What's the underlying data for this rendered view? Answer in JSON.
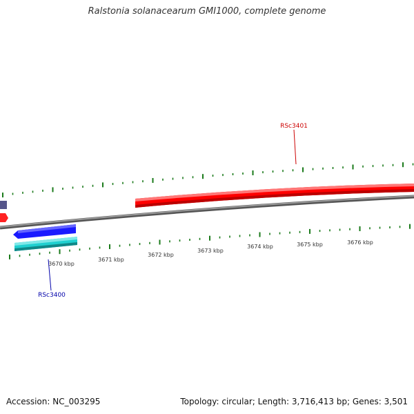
{
  "title": "Ralstonia solanacearum GMI1000, complete genome",
  "footer": {
    "accession": "Accession: NC_003295",
    "summary": "Topology: circular; Length: 3,716,413 bp; Genes: 3,501"
  },
  "scale_labels": [
    "3670 kbp",
    "3671 kbp",
    "3672 kbp",
    "3673 kbp",
    "3674 kbp",
    "3675 kbp",
    "3676 kbp"
  ],
  "genes": [
    {
      "label": "RSc3401",
      "strand": "forward",
      "color": "#ff0000"
    },
    {
      "label": "RSc3400",
      "strand": "reverse",
      "color": "#0000ee"
    }
  ],
  "colors": {
    "backbone": "#888888",
    "ticks": "#1a7a1a",
    "forward_label": "#cc0000",
    "reverse_label": "#0000aa",
    "cds_reverse": "#1a1aff",
    "cds_reverse_2": "#20d0d0",
    "feature_purple": "#55558a",
    "feature_red_small": "#ff2222"
  }
}
